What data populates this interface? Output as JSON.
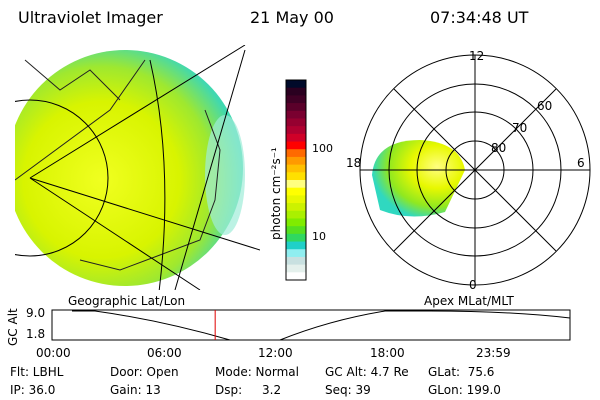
{
  "header": {
    "title": "Ultraviolet Imager",
    "date": "21 May 00",
    "time": "07:34:48 UT"
  },
  "colorbar": {
    "label": "photon cm⁻²s⁻¹",
    "ticks": [
      "100",
      "10"
    ],
    "colors": [
      "#000a2a",
      "#2a0020",
      "#3f0025",
      "#5a002a",
      "#7a0030",
      "#960030",
      "#b00030",
      "#d00028",
      "#ff0000",
      "#ff6a00",
      "#ff9a00",
      "#ffc000",
      "#ffe000",
      "#ffff80",
      "#ffff00",
      "#e8f800",
      "#ccf200",
      "#aaf000",
      "#80ec00",
      "#55e020",
      "#30d860",
      "#20d0c8",
      "#90eef0",
      "#c8e0e0",
      "#e4f0ec",
      "#ffffff"
    ]
  },
  "polar": {
    "mlt_labels": [
      "12",
      "18",
      "6",
      "0"
    ],
    "lat_labels": [
      "60",
      "70",
      "80"
    ]
  },
  "timeline": {
    "left_title": "Geographic Lat/Lon",
    "right_title": "Apex MLat/MLT",
    "ylabel": "GC Alt",
    "yticks": [
      "9.0",
      "1.8"
    ],
    "xticks": [
      "00:00",
      "06:00",
      "12:00",
      "18:00",
      "23:59"
    ],
    "current_fraction": 0.315
  },
  "status": {
    "flt": "Flt: LBHL",
    "ip": "IP: 36.0",
    "door": "Door: Open",
    "gain": "Gain: 13",
    "mode": "Mode: Normal",
    "dsp_label": "Dsp:",
    "dsp_value": "3.2",
    "gcalt": "GC Alt: 4.7 Re",
    "seq": "Seq: 39",
    "glat": "GLat:  75.6",
    "glon": "GLon: 199.0"
  }
}
